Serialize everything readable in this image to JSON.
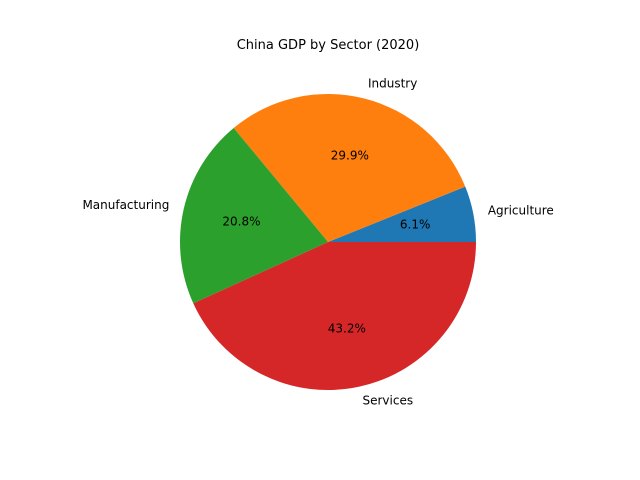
{
  "chart_data": {
    "type": "pie",
    "title": "China GDP by Sector (2020)",
    "categories": [
      "Agriculture",
      "Industry",
      "Manufacturing",
      "Services"
    ],
    "values": [
      6.1,
      29.9,
      20.8,
      43.2
    ],
    "percent_labels": [
      "6.1%",
      "29.9%",
      "20.8%",
      "43.2%"
    ],
    "colors": [
      "#1f77b4",
      "#ff7f0e",
      "#2ca02c",
      "#d62728"
    ],
    "start_angle_deg": 0,
    "direction": "counterclockwise",
    "legend": "none"
  }
}
